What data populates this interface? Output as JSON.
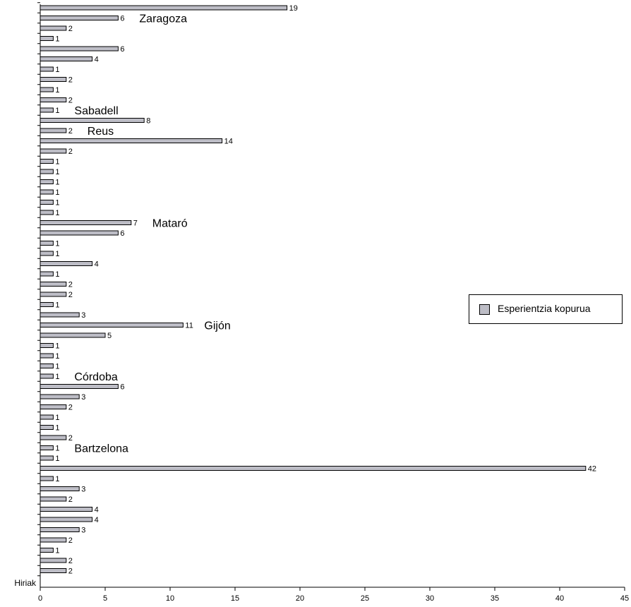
{
  "chart_data": {
    "type": "bar",
    "orientation": "horizontal",
    "category_axis_label": "Hiriak",
    "series": [
      {
        "name": "Esperientzia kopurua",
        "values": [
          19,
          6,
          2,
          1,
          6,
          4,
          1,
          2,
          1,
          2,
          1,
          8,
          2,
          14,
          2,
          1,
          1,
          1,
          1,
          1,
          1,
          7,
          6,
          1,
          1,
          4,
          1,
          2,
          2,
          1,
          3,
          11,
          5,
          1,
          1,
          1,
          1,
          6,
          3,
          2,
          1,
          1,
          2,
          1,
          1,
          42,
          1,
          3,
          2,
          4,
          4,
          3,
          2,
          1,
          2,
          2
        ]
      }
    ],
    "xlim": [
      0,
      45
    ],
    "xticks": [
      0,
      5,
      10,
      15,
      20,
      25,
      30,
      35,
      40,
      45
    ],
    "bar_color": "#bdbdc6",
    "legend_position": "right",
    "annotations": [
      {
        "text": "Zaragoza",
        "bar_index": 1
      },
      {
        "text": "Sabadell",
        "bar_index": 10
      },
      {
        "text": "Reus",
        "bar_index": 12
      },
      {
        "text": "Mataró",
        "bar_index": 21
      },
      {
        "text": "Gijón",
        "bar_index": 31
      },
      {
        "text": "Córdoba",
        "bar_index": 36
      },
      {
        "text": "Bartzelona",
        "bar_index": 43
      }
    ]
  }
}
